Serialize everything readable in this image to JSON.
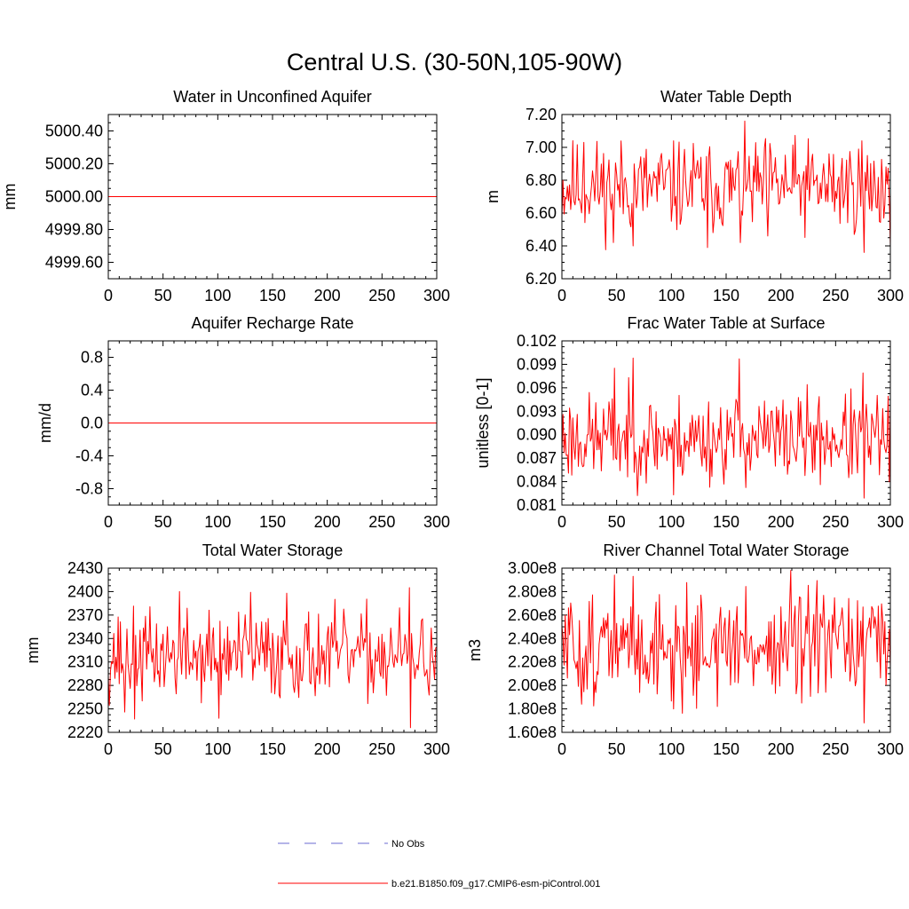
{
  "title": "Central U.S. (30-50N,105-90W)",
  "chart_data": [
    {
      "type": "line",
      "title": "Water in Unconfined Aquifer",
      "xlabel": "",
      "ylabel": "mm",
      "xlim": [
        0,
        300
      ],
      "ylim": [
        4999.5,
        5000.5
      ],
      "xticks": [
        0,
        50,
        100,
        150,
        200,
        250,
        300
      ],
      "xtick_labels": [
        "0",
        "50",
        "100",
        "150",
        "200",
        "250",
        "300"
      ],
      "yticks": [
        4999.6,
        4999.8,
        5000.0,
        5000.2,
        5000.4
      ],
      "ytick_labels": [
        "4999.60",
        "4999.80",
        "5000.00",
        "5000.20",
        "5000.40"
      ],
      "series": [
        {
          "name": "b.e21.B1850.f09_g17.CMIP6-esm-piControl.001",
          "color": "#ff0000",
          "constant": 5000.0
        }
      ]
    },
    {
      "type": "line",
      "title": "Water Table Depth",
      "xlabel": "",
      "ylabel": "m",
      "xlim": [
        0,
        300
      ],
      "ylim": [
        6.2,
        7.2
      ],
      "xticks": [
        0,
        50,
        100,
        150,
        200,
        250,
        300
      ],
      "xtick_labels": [
        "0",
        "50",
        "100",
        "150",
        "200",
        "250",
        "300"
      ],
      "yticks": [
        6.2,
        6.4,
        6.6,
        6.8,
        7.0,
        7.2
      ],
      "ytick_labels": [
        "6.20",
        "6.40",
        "6.60",
        "6.80",
        "7.00",
        "7.20"
      ],
      "series": [
        {
          "name": "b.e21.B1850.f09_g17.CMIP6-esm-piControl.001",
          "color": "#ff0000",
          "mean": 6.76,
          "amp": 0.14,
          "seed": 11,
          "extremes": [
            [
              20,
              7.03
            ],
            [
              47,
              6.42
            ],
            [
              65,
              6.4
            ],
            [
              102,
              7.04
            ],
            [
              133,
              6.39
            ],
            [
              163,
              6.42
            ],
            [
              188,
              6.46
            ],
            [
              276,
              6.36
            ],
            [
              274,
              7.04
            ]
          ]
        }
      ]
    },
    {
      "type": "line",
      "title": "Aquifer Recharge Rate",
      "xlabel": "",
      "ylabel": "mm/d",
      "xlim": [
        0,
        300
      ],
      "ylim": [
        -1.0,
        1.0
      ],
      "xticks": [
        0,
        50,
        100,
        150,
        200,
        250,
        300
      ],
      "xtick_labels": [
        "0",
        "50",
        "100",
        "150",
        "200",
        "250",
        "300"
      ],
      "yticks": [
        -0.8,
        -0.4,
        0.0,
        0.4,
        0.8
      ],
      "ytick_labels": [
        "-0.8",
        "-0.4",
        "0.0",
        "0.4",
        "0.8"
      ],
      "series": [
        {
          "name": "b.e21.B1850.f09_g17.CMIP6-esm-piControl.001",
          "color": "#ff0000",
          "constant": 0.0
        }
      ]
    },
    {
      "type": "line",
      "title": "Frac Water Table at Surface",
      "xlabel": "",
      "ylabel": "unitless [0-1]",
      "xlim": [
        0,
        300
      ],
      "ylim": [
        0.081,
        0.102
      ],
      "xticks": [
        0,
        50,
        100,
        150,
        200,
        250,
        300
      ],
      "xtick_labels": [
        "0",
        "50",
        "100",
        "150",
        "200",
        "250",
        "300"
      ],
      "yticks": [
        0.081,
        0.084,
        0.087,
        0.09,
        0.093,
        0.096,
        0.099,
        0.102
      ],
      "ytick_labels": [
        "0.081",
        "0.084",
        "0.087",
        "0.090",
        "0.093",
        "0.096",
        "0.099",
        "0.102"
      ],
      "series": [
        {
          "name": "b.e21.B1850.f09_g17.CMIP6-esm-piControl.001",
          "color": "#ff0000",
          "mean": 0.0895,
          "amp": 0.0028,
          "seed": 23,
          "extremes": [
            [
              65,
              0.0998
            ],
            [
              162,
              0.0997
            ],
            [
              102,
              0.0823
            ],
            [
              276,
              0.0819
            ],
            [
              275,
              0.0979
            ],
            [
              48,
              0.0985
            ]
          ]
        }
      ]
    },
    {
      "type": "line",
      "title": "Total Water Storage",
      "xlabel": "",
      "ylabel": "mm",
      "xlim": [
        0,
        300
      ],
      "ylim": [
        2220,
        2430
      ],
      "xticks": [
        0,
        50,
        100,
        150,
        200,
        250,
        300
      ],
      "xtick_labels": [
        "0",
        "50",
        "100",
        "150",
        "200",
        "250",
        "300"
      ],
      "yticks": [
        2220,
        2250,
        2280,
        2310,
        2340,
        2370,
        2400,
        2430
      ],
      "ytick_labels": [
        "2220",
        "2250",
        "2280",
        "2310",
        "2340",
        "2370",
        "2400",
        "2430"
      ],
      "series": [
        {
          "name": "b.e21.B1850.f09_g17.CMIP6-esm-piControl.001",
          "color": "#ff0000",
          "mean": 2318,
          "amp": 28,
          "seed": 37,
          "extremes": [
            [
              65,
              2400
            ],
            [
              130,
              2399
            ],
            [
              163,
              2398
            ],
            [
              275,
              2405
            ],
            [
              24,
              2237
            ],
            [
              101,
              2238
            ],
            [
              276,
              2226
            ],
            [
              15,
              2246
            ]
          ]
        }
      ]
    },
    {
      "type": "line",
      "title": "River Channel Total Water Storage",
      "xlabel": "",
      "ylabel": "m3",
      "xlim": [
        0,
        300
      ],
      "ylim": [
        160000000.0,
        300000000.0
      ],
      "xticks": [
        0,
        50,
        100,
        150,
        200,
        250,
        300
      ],
      "xtick_labels": [
        "0",
        "50",
        "100",
        "150",
        "200",
        "250",
        "300"
      ],
      "yticks": [
        160000000.0,
        180000000.0,
        200000000.0,
        220000000.0,
        240000000.0,
        260000000.0,
        280000000.0,
        300000000.0
      ],
      "ytick_labels": [
        "1.60e8",
        "1.80e8",
        "2.00e8",
        "2.20e8",
        "2.40e8",
        "2.60e8",
        "2.80e8",
        "3.00e8"
      ],
      "series": [
        {
          "name": "b.e21.B1850.f09_g17.CMIP6-esm-piControl.001",
          "color": "#ff0000",
          "mean": 233000000.0,
          "amp": 22000000.0,
          "seed": 51,
          "extremes": [
            [
              48,
              294000000.0
            ],
            [
              65,
              293000000.0
            ],
            [
              209,
              298000000.0
            ],
            [
              102,
              180000000.0
            ],
            [
              276,
              168000000.0
            ],
            [
              219,
              185000000.0
            ],
            [
              18,
              184000000.0
            ]
          ]
        }
      ]
    }
  ],
  "legend": {
    "placement": "bottom-center",
    "items": [
      {
        "label": "No Obs",
        "color": "#6a6ad0",
        "style": "dashed"
      },
      {
        "label": "b.e21.B1850.f09_g17.CMIP6-esm-piControl.001",
        "color": "#ff0000",
        "style": "solid"
      }
    ]
  }
}
